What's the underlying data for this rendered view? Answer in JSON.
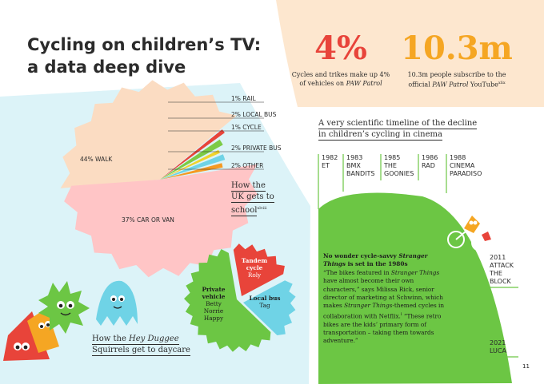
{
  "title_line1": "Cycling on children’s TV:",
  "title_line2": "a data deep dive",
  "stats": [
    {
      "value": "4%",
      "line1": "Cycles and trikes make up 4%",
      "line2_prefix": "of vehicles on ",
      "line2_em": "PAW Patrol",
      "line2_sup": "",
      "color": "#e8443a"
    },
    {
      "value": "10.3m",
      "line1": "10.3m people subscribe to the",
      "line2_prefix": "official ",
      "line2_em": "PAW Patrol",
      "line2_suffix": " YouTube",
      "line2_sup": "xlix",
      "color": "#f5a623"
    }
  ],
  "uk_caption": {
    "l1": "How the",
    "l2": "UK gets to",
    "l3": "school",
    "sup": "xlviii"
  },
  "duggee_caption": {
    "l1_prefix": "How the ",
    "l1_em": "Hey Duggee",
    "l2": "Squirrels get to daycare"
  },
  "timeline_title_l1": "A very scientific timeline of the decline",
  "timeline_title_l2": "in children’s cycling in cinema",
  "page_number": "11",
  "quote": {
    "heading_prefix": "No wonder cycle-savvy ",
    "heading_em": "Stranger Things",
    "heading_suffix": " is set in the 1980s",
    "p1": "“The bikes featured in ",
    "p1_em": "Stranger Things",
    "p1_rest": " have almost become their own characters,” says Milissa Rick, senior director of marketing at Schwinn, which makes ",
    "p2_em": "Stranger Things",
    "p2_rest": "-themed cycles in collaboration with Netflix.",
    "sup": "l",
    "p3": " “These retro bikes are the kids’ primary form of transportation – taking them towards adventure.”"
  },
  "chart_data": [
    {
      "type": "pie",
      "title": "How the UK gets to school",
      "categories": [
        "Walk",
        "Car or van",
        "Other",
        "Private bus",
        "Cycle",
        "Local bus",
        "Rail"
      ],
      "labels": [
        "44% WALK",
        "37% CAR OR VAN",
        "2% OTHER",
        "2% PRIVATE BUS",
        "1% CYCLE",
        "2% LOCAL BUS",
        "1% RAIL"
      ],
      "values": [
        44,
        37,
        2,
        2,
        1,
        2,
        1
      ],
      "colors": [
        "#fbdcc2",
        "#ffc5c6",
        "#f59a23",
        "#6fd3e6",
        "#f0d32c",
        "#7ccb46",
        "#e8443a"
      ]
    },
    {
      "type": "pie",
      "title": "How the Hey Duggee Squirrels get to daycare",
      "slices": [
        {
          "label": "Private vehicle",
          "names": [
            "Betty",
            "Norrie",
            "Happy"
          ],
          "value": 3,
          "color": "#6cc644"
        },
        {
          "label": "Tandem cycle",
          "names": [
            "Roly"
          ],
          "value": 1,
          "color": "#e8443a"
        },
        {
          "label": "Local bus",
          "names": [
            "Tag"
          ],
          "value": 1,
          "color": "#6fd3e6"
        }
      ]
    },
    {
      "type": "area",
      "title": "A very scientific timeline of the decline in children’s cycling in cinema",
      "events": [
        {
          "year": "1982",
          "film": [
            "ET"
          ]
        },
        {
          "year": "1983",
          "film": [
            "BMX",
            "BANDITS"
          ]
        },
        {
          "year": "1985",
          "film": [
            "THE",
            "GOONIES"
          ]
        },
        {
          "year": "1986",
          "film": [
            "RAD"
          ]
        },
        {
          "year": "1988",
          "film": [
            "CINEMA",
            "PARADISO"
          ]
        },
        {
          "year": "2011",
          "film": [
            "ATTACK",
            "THE",
            "BLOCK"
          ]
        },
        {
          "year": "2021",
          "film": [
            "LUCA"
          ]
        }
      ],
      "color": "#6cc644"
    }
  ]
}
